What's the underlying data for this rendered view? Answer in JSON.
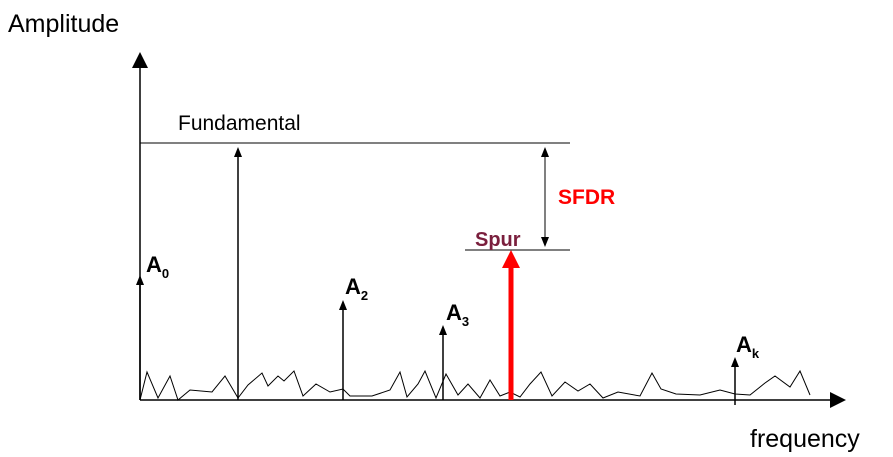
{
  "axes": {
    "y_label": "Amplitude",
    "x_label": "frequency"
  },
  "labels": {
    "fundamental": "Fundamental",
    "sfdr": "SFDR",
    "spur": "Spur"
  },
  "components": [
    {
      "symbol": "A",
      "subscript": "0"
    },
    {
      "symbol": "A",
      "subscript": "2"
    },
    {
      "symbol": "A",
      "subscript": "3"
    },
    {
      "symbol": "A",
      "subscript": "k"
    }
  ]
}
